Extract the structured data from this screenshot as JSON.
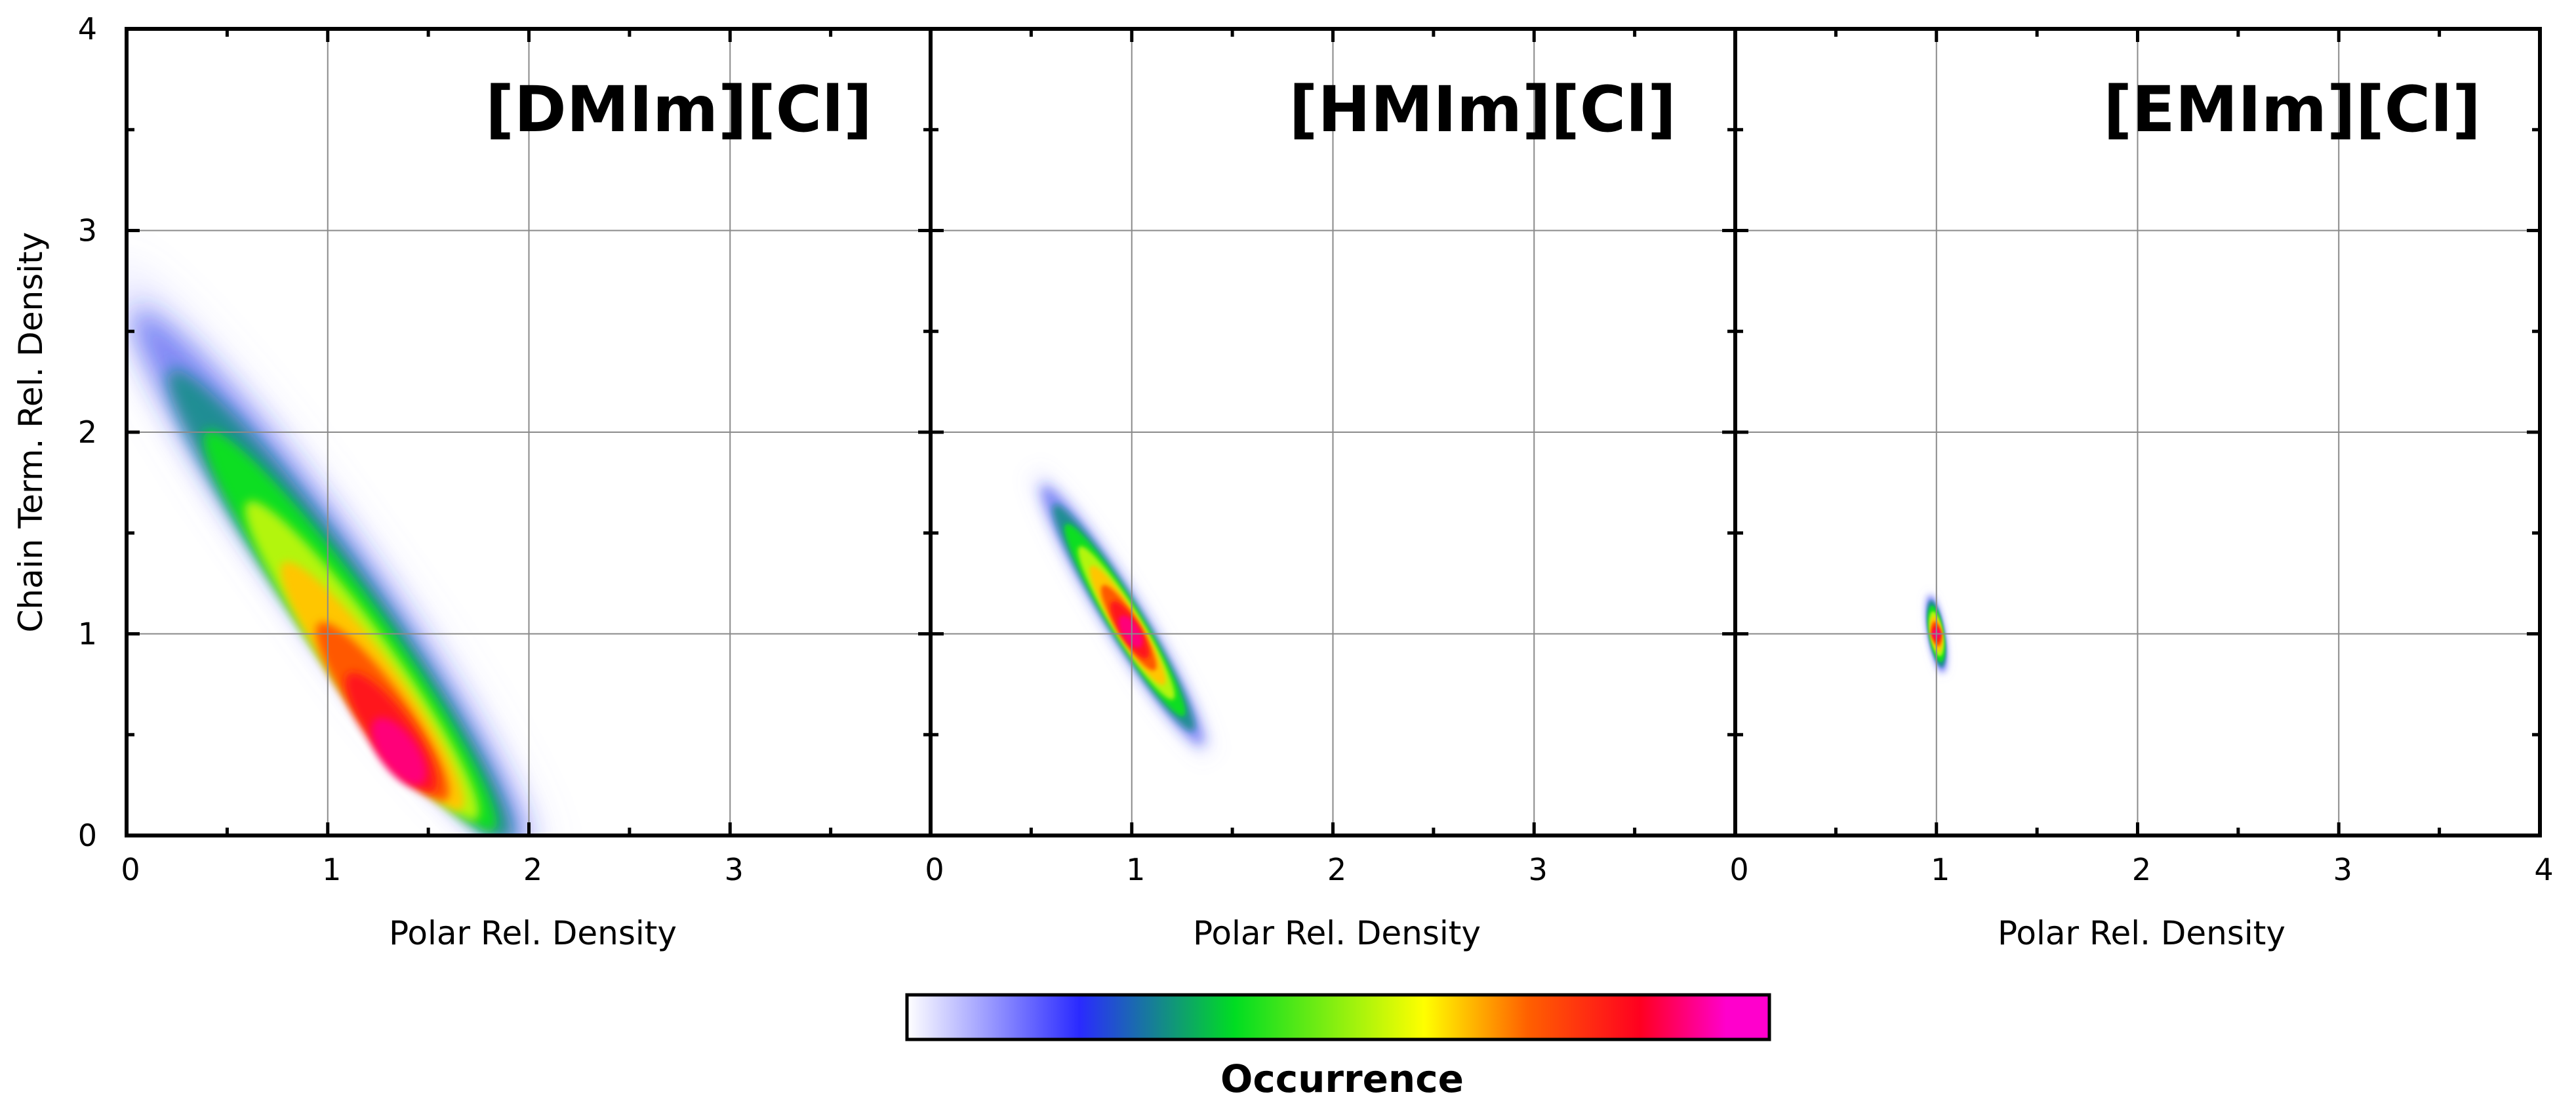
{
  "chart_data": [
    {
      "type": "heatmap",
      "title": "[DMIm][Cl]",
      "xlabel": "Polar Rel. Density",
      "ylabel": "Chain Term. Rel. Density",
      "xlim": [
        0,
        4
      ],
      "ylim": [
        0,
        4
      ],
      "x_ticks": [
        "0",
        "1",
        "2",
        "3"
      ],
      "y_ticks": [
        "0",
        "1",
        "2",
        "3",
        "4"
      ],
      "grid": true,
      "distribution": {
        "shape": "elongated ridge along x + y ≈ 2",
        "peak": {
          "x": 1.4,
          "y": 0.3
        },
        "ridge_start": {
          "x": 0.0,
          "y": 2.7
        },
        "ridge_end": {
          "x": 1.95,
          "y": 0.0
        },
        "half_width_across": 0.22
      }
    },
    {
      "type": "heatmap",
      "title": "[HMIm][Cl]",
      "xlabel": "Polar Rel. Density",
      "ylabel": "",
      "xlim": [
        0,
        4
      ],
      "ylim": [
        0,
        4
      ],
      "x_ticks": [
        "0",
        "1",
        "2",
        "3"
      ],
      "grid": true,
      "distribution": {
        "shape": "ellipse along x + y ≈ 2",
        "peak": {
          "x": 1.0,
          "y": 1.0
        },
        "ridge_start": {
          "x": 0.55,
          "y": 1.75
        },
        "ridge_end": {
          "x": 1.35,
          "y": 0.45
        },
        "half_width_across": 0.1
      }
    },
    {
      "type": "heatmap",
      "title": "[EMIm][Cl]",
      "xlabel": "Polar Rel. Density",
      "ylabel": "",
      "xlim": [
        0,
        4
      ],
      "ylim": [
        0,
        4
      ],
      "x_ticks": [
        "0",
        "1",
        "2",
        "3",
        "4"
      ],
      "grid": true,
      "distribution": {
        "shape": "small ellipse",
        "peak": {
          "x": 1.0,
          "y": 1.0
        },
        "ridge_start": {
          "x": 0.97,
          "y": 1.18
        },
        "ridge_end": {
          "x": 1.03,
          "y": 0.82
        },
        "half_width_across": 0.045
      }
    }
  ],
  "colorbar": {
    "label": "Occurrence",
    "colors": [
      "#ffffff",
      "#2a2aff",
      "#00dd22",
      "#ffff00",
      "#ff6000",
      "#ff0020",
      "#ff00cc"
    ]
  }
}
